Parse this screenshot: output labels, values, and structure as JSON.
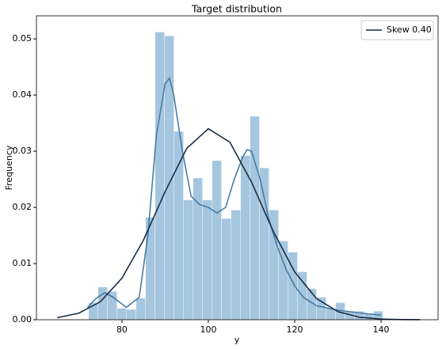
{
  "chart_data": {
    "type": "histogram",
    "title": "Target distribution",
    "x_label": "y",
    "y_label": "Frequency",
    "bins": [
      72.3,
      74.5,
      76.7,
      78.9,
      81.1,
      83.3,
      85.5,
      87.7,
      89.9,
      92.1,
      94.3,
      96.5,
      98.7,
      100.9,
      103.1,
      105.3,
      107.5,
      109.7,
      111.9,
      114.1,
      116.3,
      118.5,
      120.7,
      122.9,
      125.1,
      127.3,
      129.5,
      131.7,
      133.9,
      136.1,
      138.3,
      140.5
    ],
    "counts": [
      0.003,
      0.0058,
      0.005,
      0.002,
      0.0018,
      0.0038,
      0.0182,
      0.0512,
      0.0505,
      0.0335,
      0.0213,
      0.0252,
      0.0213,
      0.0283,
      0.018,
      0.0195,
      0.0292,
      0.0362,
      0.027,
      0.0195,
      0.014,
      0.012,
      0.0085,
      0.0055,
      0.004,
      0.002,
      0.003,
      0.0015,
      0.0015,
      0.001,
      0.0015
    ],
    "color": "#a5c6df",
    "series": [
      {
        "color": "#4a7ba3",
        "x": [
          72,
          74,
          76,
          78,
          81,
          84,
          86,
          88,
          90,
          91,
          92,
          94,
          96,
          98,
          100,
          102,
          104,
          106,
          108,
          109,
          110,
          112,
          114,
          116,
          118,
          120,
          122,
          125,
          130,
          135,
          140
        ],
        "values": [
          0.0022,
          0.0038,
          0.0048,
          0.004,
          0.0022,
          0.004,
          0.015,
          0.033,
          0.042,
          0.043,
          0.04,
          0.03,
          0.022,
          0.0205,
          0.02,
          0.019,
          0.02,
          0.025,
          0.029,
          0.0303,
          0.03,
          0.025,
          0.018,
          0.013,
          0.009,
          0.006,
          0.004,
          0.0025,
          0.0017,
          0.0012,
          0.0008
        ]
      },
      {
        "name": "Skew 0.40",
        "color": "#1c2f44",
        "x": [
          65,
          70,
          75,
          80,
          85,
          90,
          95,
          100,
          105,
          110,
          115,
          120,
          125,
          130,
          135,
          140,
          145,
          149
        ],
        "values": [
          0.00035,
          0.00116,
          0.0032,
          0.0074,
          0.0142,
          0.0228,
          0.0305,
          0.034,
          0.0316,
          0.0245,
          0.0158,
          0.0085,
          0.0038,
          0.00144,
          0.00045,
          0.00012,
          3e-05,
          1e-05
        ]
      }
    ],
    "xlim": [
      60.2,
      153.2
    ],
    "ylim": [
      0,
      0.0541
    ],
    "xticks": [
      80,
      100,
      120,
      140
    ],
    "yticks": [
      {
        "value": 0,
        "label": "0.00"
      },
      {
        "value": 0.01,
        "label": "0.01"
      },
      {
        "value": 0.02,
        "label": "0.02"
      },
      {
        "value": 0.03,
        "label": "0.03"
      },
      {
        "value": 0.04,
        "label": "0.04"
      },
      {
        "value": 0.05,
        "label": "0.05"
      }
    ],
    "legend": "upper right"
  }
}
